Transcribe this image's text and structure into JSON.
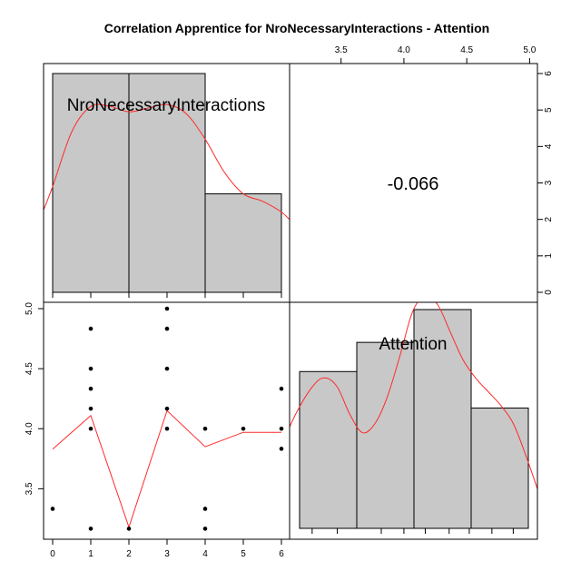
{
  "chart_data": {
    "type": "pairs",
    "title": "Correlation Apprentice for NroNecessaryInteractions - Attention",
    "colors": {
      "bar_fill": "#c8c8c8",
      "smooth_line": "#ff2a2a",
      "points": "#000000",
      "frame": "#000000"
    },
    "variables": [
      "NroNecessaryInteractions",
      "Attention"
    ],
    "correlation": "-0.066",
    "nro_histogram": {
      "breaks": [
        0,
        2,
        4,
        6
      ],
      "counts": [
        6,
        6,
        2.7
      ],
      "ylim": [
        0,
        6
      ],
      "y_ticks": [
        "0",
        "1",
        "2",
        "3",
        "4",
        "5",
        "6"
      ]
    },
    "attention_histogram": {
      "breaks": [
        3.17,
        3.625,
        4.08,
        4.535,
        4.99
      ],
      "counts": [
        4.3,
        5.1,
        6.0,
        3.3
      ],
      "x_ticks": [
        "3.5",
        "4.0",
        "4.5",
        "5.0"
      ]
    },
    "nro_density": {
      "x": [
        -0.3,
        0,
        0.5,
        1,
        1.5,
        2,
        2.5,
        3,
        3.5,
        4,
        4.5,
        5,
        5.5,
        6,
        6.3
      ],
      "y": [
        2.1,
        2.9,
        4.4,
        5.1,
        5.1,
        4.95,
        5.05,
        5.15,
        4.9,
        4.2,
        3.3,
        2.7,
        2.5,
        2.2,
        1.9
      ]
    },
    "attention_density": {
      "x": [
        2.97,
        3.12,
        3.27,
        3.37,
        3.47,
        3.57,
        3.67,
        3.77,
        3.87,
        3.97,
        4.07,
        4.17,
        4.27,
        4.37,
        4.47,
        4.57,
        4.67,
        4.77,
        4.87,
        4.97,
        5.07
      ],
      "y": [
        0.7,
        1.2,
        1.55,
        1.65,
        1.55,
        1.25,
        1.05,
        1.15,
        1.45,
        1.9,
        2.38,
        2.55,
        2.45,
        2.15,
        1.85,
        1.65,
        1.5,
        1.35,
        1.15,
        0.8,
        0.4
      ],
      "ylim": [
        0,
        2.4
      ]
    },
    "scatter": {
      "x_ticks": [
        "0",
        "1",
        "2",
        "3",
        "4",
        "5",
        "6"
      ],
      "y_ticks": [
        "3.5",
        "4.0",
        "4.5",
        "5.0"
      ],
      "xlim": [
        0,
        6
      ],
      "ylim": [
        3.17,
        5.0
      ],
      "points": [
        [
          0,
          3.333
        ],
        [
          1,
          3.167
        ],
        [
          1,
          4.0
        ],
        [
          1,
          4.167
        ],
        [
          1,
          4.333
        ],
        [
          1,
          4.5
        ],
        [
          1,
          4.833
        ],
        [
          2,
          3.167
        ],
        [
          3,
          4.0
        ],
        [
          3,
          4.167
        ],
        [
          3,
          4.5
        ],
        [
          3,
          4.833
        ],
        [
          3,
          5.0
        ],
        [
          4,
          3.167
        ],
        [
          4,
          3.333
        ],
        [
          4,
          4.0
        ],
        [
          5,
          4.0
        ],
        [
          6,
          3.833
        ],
        [
          6,
          4.0
        ],
        [
          6,
          4.333
        ]
      ],
      "smooth": {
        "x": [
          0,
          1,
          2,
          3,
          4,
          5,
          6
        ],
        "y": [
          3.83,
          4.11,
          3.18,
          4.15,
          3.85,
          3.97,
          3.97
        ]
      }
    }
  }
}
